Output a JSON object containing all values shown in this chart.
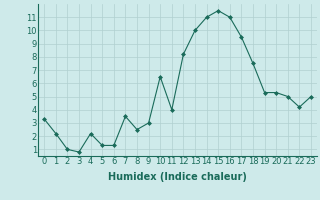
{
  "x": [
    0,
    1,
    2,
    3,
    4,
    5,
    6,
    7,
    8,
    9,
    10,
    11,
    12,
    13,
    14,
    15,
    16,
    17,
    18,
    19,
    20,
    21,
    22,
    23
  ],
  "y": [
    3.3,
    2.2,
    1.0,
    0.8,
    2.2,
    1.3,
    1.3,
    3.5,
    2.5,
    3.0,
    6.5,
    4.0,
    8.2,
    10.0,
    11.0,
    11.5,
    11.0,
    9.5,
    7.5,
    5.3,
    5.3,
    5.0,
    4.2,
    5.0
  ],
  "line_color": "#1a6b5a",
  "marker": "D",
  "marker_size": 2,
  "bg_color": "#ceeaea",
  "grid_color": "#b0d0d0",
  "xlabel": "Humidex (Indice chaleur)",
  "xlabel_fontsize": 7,
  "tick_fontsize": 6,
  "ylim": [
    0.5,
    12
  ],
  "xlim": [
    -0.5,
    23.5
  ],
  "yticks": [
    1,
    2,
    3,
    4,
    5,
    6,
    7,
    8,
    9,
    10,
    11
  ],
  "xticks": [
    0,
    1,
    2,
    3,
    4,
    5,
    6,
    7,
    8,
    9,
    10,
    11,
    12,
    13,
    14,
    15,
    16,
    17,
    18,
    19,
    20,
    21,
    22,
    23
  ]
}
